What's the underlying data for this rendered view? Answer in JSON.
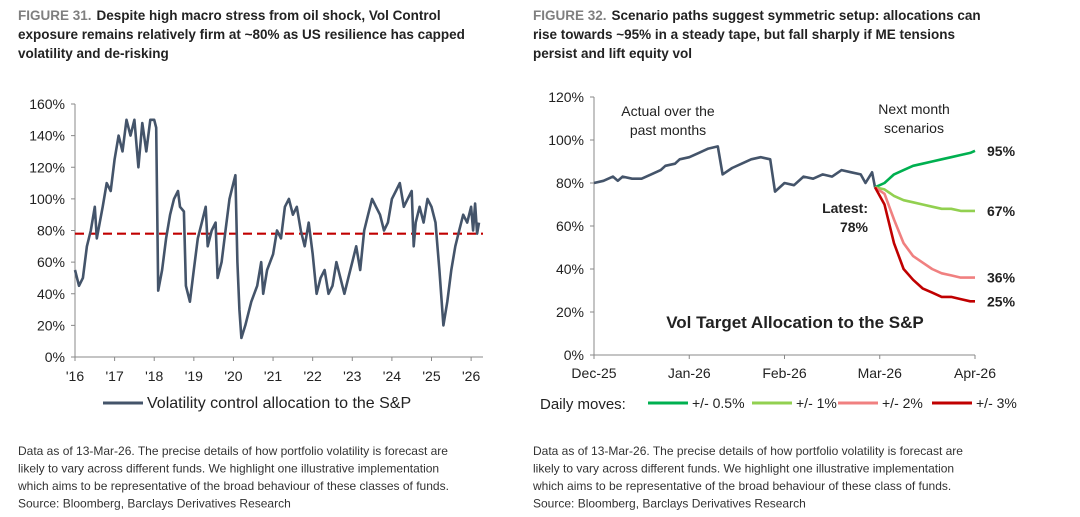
{
  "chart_data": [
    {
      "type": "line",
      "figure_label": "FIGURE 31.",
      "title": [
        "Despite high macro stress from oil shock, Vol Control",
        "exposure remains relatively firm at ~80% as US resilience has capped",
        "volatility and de-risking"
      ],
      "series": [
        {
          "name": "Volatility control allocation to the S&P",
          "color": "#44546a",
          "x": [
            2016.0,
            2016.1,
            2016.2,
            2016.3,
            2016.4,
            2016.5,
            2016.55,
            2016.7,
            2016.8,
            2016.9,
            2017.0,
            2017.1,
            2017.2,
            2017.3,
            2017.4,
            2017.5,
            2017.6,
            2017.7,
            2017.8,
            2017.9,
            2018.0,
            2018.05,
            2018.1,
            2018.2,
            2018.3,
            2018.4,
            2018.5,
            2018.6,
            2018.65,
            2018.75,
            2018.8,
            2018.9,
            2019.0,
            2019.1,
            2019.2,
            2019.3,
            2019.35,
            2019.45,
            2019.55,
            2019.6,
            2019.7,
            2019.8,
            2019.9,
            2020.0,
            2020.05,
            2020.1,
            2020.15,
            2020.2,
            2020.3,
            2020.45,
            2020.6,
            2020.7,
            2020.75,
            2020.85,
            2021.0,
            2021.1,
            2021.2,
            2021.3,
            2021.4,
            2021.5,
            2021.6,
            2021.7,
            2021.8,
            2021.9,
            2022.0,
            2022.1,
            2022.2,
            2022.3,
            2022.4,
            2022.5,
            2022.6,
            2022.7,
            2022.8,
            2022.9,
            2023.0,
            2023.1,
            2023.2,
            2023.3,
            2023.4,
            2023.5,
            2023.6,
            2023.7,
            2023.8,
            2023.9,
            2024.0,
            2024.1,
            2024.2,
            2024.3,
            2024.4,
            2024.5,
            2024.55,
            2024.6,
            2024.7,
            2024.8,
            2024.9,
            2025.0,
            2025.1,
            2025.2,
            2025.3,
            2025.4,
            2025.5,
            2025.6,
            2025.7,
            2025.8,
            2025.9,
            2026.0,
            2026.05,
            2026.1,
            2026.15,
            2026.2
          ],
          "values": [
            55,
            45,
            50,
            70,
            80,
            95,
            75,
            95,
            110,
            105,
            125,
            140,
            130,
            150,
            140,
            150,
            120,
            148,
            130,
            150,
            150,
            145,
            42,
            55,
            75,
            90,
            100,
            105,
            95,
            92,
            45,
            35,
            55,
            75,
            85,
            95,
            70,
            80,
            85,
            50,
            60,
            80,
            100,
            110,
            115,
            60,
            30,
            12,
            20,
            35,
            45,
            60,
            40,
            55,
            65,
            80,
            75,
            95,
            100,
            90,
            95,
            80,
            70,
            85,
            65,
            40,
            50,
            55,
            40,
            45,
            60,
            50,
            40,
            50,
            60,
            70,
            55,
            80,
            90,
            100,
            95,
            90,
            80,
            85,
            100,
            105,
            110,
            95,
            100,
            105,
            70,
            85,
            95,
            85,
            100,
            95,
            85,
            55,
            20,
            35,
            55,
            70,
            80,
            90,
            85,
            95,
            80,
            97,
            78,
            85
          ]
        }
      ],
      "reference_line": {
        "value": 78,
        "color": "#c00000"
      },
      "xlim": [
        2016,
        2026.3
      ],
      "xticks": [
        {
          "value": 2016,
          "label": "'16"
        },
        {
          "value": 2017,
          "label": "'17"
        },
        {
          "value": 2018,
          "label": "'18"
        },
        {
          "value": 2019,
          "label": "'19"
        },
        {
          "value": 2020,
          "label": "'20"
        },
        {
          "value": 2021,
          "label": "'21"
        },
        {
          "value": 2022,
          "label": "'22"
        },
        {
          "value": 2023,
          "label": "'23"
        },
        {
          "value": 2024,
          "label": "'24"
        },
        {
          "value": 2025,
          "label": "'25"
        },
        {
          "value": 2026,
          "label": "'26"
        }
      ],
      "ylim": [
        0,
        160
      ],
      "yticks": [
        {
          "value": 0,
          "label": "0%"
        },
        {
          "value": 20,
          "label": "20%"
        },
        {
          "value": 40,
          "label": "40%"
        },
        {
          "value": 60,
          "label": "60%"
        },
        {
          "value": 80,
          "label": "80%"
        },
        {
          "value": 100,
          "label": "100%"
        },
        {
          "value": 120,
          "label": "120%"
        },
        {
          "value": 140,
          "label": "140%"
        },
        {
          "value": 160,
          "label": "160%"
        }
      ],
      "notes": [
        "Data as of 13-Mar-26. The precise details of how portfolio volatility is forecast are",
        "likely to vary across different funds. We highlight one illustrative implementation",
        "which aims to be representative of the broad behaviour of these classes of funds.",
        "Source: Bloomberg, Barclays Derivatives Research"
      ]
    },
    {
      "type": "line",
      "figure_label": "FIGURE 32.",
      "title": [
        "Scenario paths suggest symmetric setup: allocations can",
        "rise towards ~95% in a steady tape, but fall sharply if ME tensions",
        "persist and lift equity vol"
      ],
      "inner_title": "Vol Target Allocation to the S&P",
      "series": [
        {
          "color": "#44546a",
          "x": [
            0,
            0.1,
            0.2,
            0.25,
            0.3,
            0.4,
            0.5,
            0.6,
            0.7,
            0.75,
            0.85,
            0.9,
            1.0,
            1.1,
            1.2,
            1.3,
            1.35,
            1.45,
            1.55,
            1.65,
            1.75,
            1.85,
            1.9,
            2.0,
            2.1,
            2.2,
            2.3,
            2.4,
            2.5,
            2.6,
            2.7,
            2.8,
            2.85,
            2.92,
            2.95
          ],
          "values": [
            80,
            81,
            83,
            81,
            83,
            82,
            82,
            84,
            86,
            88,
            89,
            91,
            92,
            94,
            96,
            97,
            84,
            87,
            89,
            91,
            92,
            91,
            76,
            80,
            79,
            83,
            82,
            84,
            83,
            86,
            85,
            84,
            80,
            85,
            78
          ]
        },
        {
          "name": "+/- 0.5%",
          "color": "#00b050",
          "x": [
            2.95,
            3.05,
            3.15,
            3.25,
            3.35,
            3.45,
            3.55,
            3.65,
            3.75,
            3.85,
            3.95,
            4.0
          ],
          "values": [
            78,
            80,
            84,
            86,
            88,
            89,
            90,
            91,
            92,
            93,
            94,
            95
          ],
          "value_labels": [
            null,
            null,
            null,
            null,
            null,
            null,
            null,
            null,
            null,
            null,
            null,
            "95%"
          ]
        },
        {
          "name": "+/- 1%",
          "color": "#92d050",
          "x": [
            2.95,
            3.05,
            3.15,
            3.25,
            3.35,
            3.45,
            3.55,
            3.65,
            3.75,
            3.85,
            3.95,
            4.0
          ],
          "values": [
            78,
            77,
            74,
            72,
            71,
            70,
            69,
            68,
            68,
            67,
            67,
            67
          ],
          "value_labels": [
            null,
            null,
            null,
            null,
            null,
            null,
            null,
            null,
            null,
            null,
            null,
            "67%"
          ]
        },
        {
          "name": "+/- 2%",
          "color": "#f08080",
          "x": [
            2.95,
            3.05,
            3.15,
            3.25,
            3.35,
            3.45,
            3.55,
            3.65,
            3.75,
            3.85,
            3.95,
            4.0
          ],
          "values": [
            78,
            75,
            63,
            52,
            46,
            43,
            40,
            38,
            37,
            36,
            36,
            36
          ],
          "value_labels": [
            null,
            null,
            null,
            null,
            null,
            null,
            null,
            null,
            null,
            null,
            null,
            "36%"
          ]
        },
        {
          "name": "+/- 3%",
          "color": "#c00000",
          "x": [
            2.95,
            3.05,
            3.15,
            3.25,
            3.35,
            3.45,
            3.55,
            3.65,
            3.75,
            3.85,
            3.95,
            4.0
          ],
          "values": [
            78,
            70,
            52,
            40,
            35,
            31,
            29,
            27,
            27,
            26,
            25,
            25
          ],
          "value_labels": [
            null,
            null,
            null,
            null,
            null,
            null,
            null,
            null,
            null,
            null,
            null,
            "25%"
          ]
        }
      ],
      "legend_title": "Daily moves:",
      "annotations": [
        {
          "lines": [
            "Actual over the",
            "past months"
          ],
          "color": "#1f5c8b"
        },
        {
          "lines": [
            "Next month",
            "scenarios"
          ],
          "color": "#c00000"
        },
        {
          "lines": [
            "Latest:",
            "78%"
          ],
          "color": "#1f3864"
        }
      ],
      "xlim": [
        0,
        4
      ],
      "xticks": [
        {
          "value": 0,
          "label": "Dec-25"
        },
        {
          "value": 1,
          "label": "Jan-26"
        },
        {
          "value": 2,
          "label": "Feb-26"
        },
        {
          "value": 3,
          "label": "Mar-26"
        },
        {
          "value": 4,
          "label": "Apr-26"
        }
      ],
      "ylim": [
        0,
        120
      ],
      "yticks": [
        {
          "value": 0,
          "label": "0%"
        },
        {
          "value": 20,
          "label": "20%"
        },
        {
          "value": 40,
          "label": "40%"
        },
        {
          "value": 60,
          "label": "60%"
        },
        {
          "value": 80,
          "label": "80%"
        },
        {
          "value": 100,
          "label": "100%"
        },
        {
          "value": 120,
          "label": "120%"
        }
      ],
      "notes": [
        "Data as of 13-Mar-26. The precise details of how portfolio volatility is forecast are",
        "likely to vary across different funds. We highlight one illustrative implementation",
        "which aims to be representative of the broad behaviour of these class of funds.",
        "Source: Bloomberg, Barclays Derivatives Research"
      ]
    }
  ]
}
